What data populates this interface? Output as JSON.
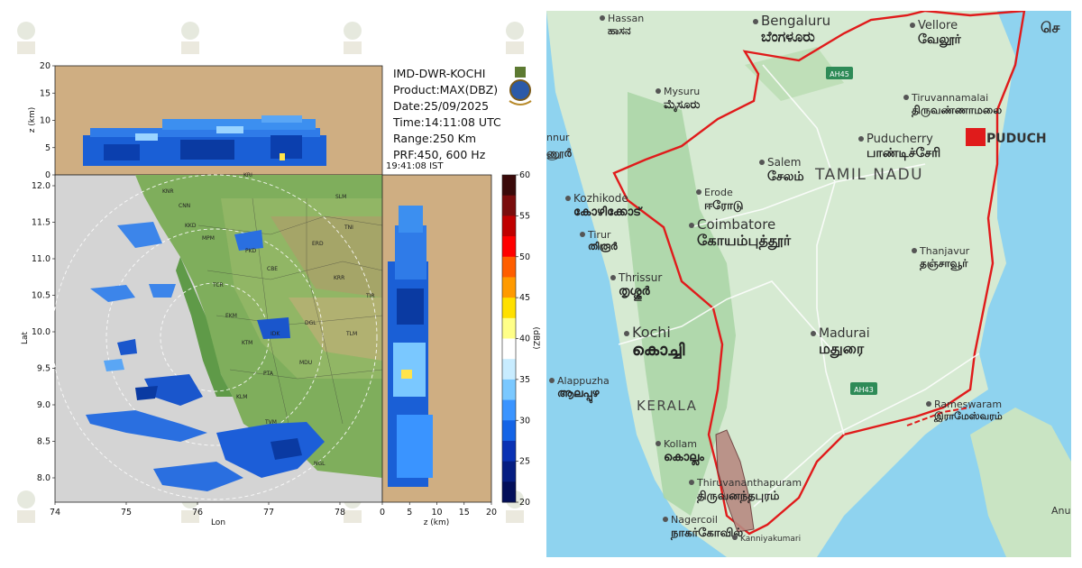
{
  "radar": {
    "station": "IMD-DWR-KOCHI",
    "product": "Product:MAX(DBZ)",
    "date": "Date:25/09/2025",
    "time_utc": "Time:14:11:08 UTC",
    "range": "Range:250 Km",
    "prf": "PRF:450, 600 Hz",
    "time_ist": "19:41:08  IST",
    "ylabel_top": "z (km)",
    "ylabel_main": "Lat",
    "xlabel_main": "Lon",
    "xlabel_side": "z (km)",
    "colorbar_label": "(dBZ)",
    "top_yticks": [
      "20",
      "15",
      "10",
      "5",
      "0"
    ],
    "main_yticks": [
      "12.0",
      "11.5",
      "11.0",
      "10.5",
      "10.0",
      "9.5",
      "9.0",
      "8.5",
      "8.0"
    ],
    "main_xticks": [
      "74",
      "75",
      "76",
      "77",
      "78"
    ],
    "side_xticks": [
      "0",
      "5",
      "10",
      "15",
      "20"
    ],
    "colorbar_ticks": [
      "60",
      "55",
      "50",
      "45",
      "40",
      "35",
      "30",
      "25",
      "20"
    ],
    "colorbar_colors": [
      "#3a0a0a",
      "#7a0d0d",
      "#c00000",
      "#ff0000",
      "#ff5e00",
      "#ff9a00",
      "#ffe000",
      "#ffff88",
      "#ffffff",
      "#c8ecff",
      "#7ac8ff",
      "#3a94ff",
      "#1464e6",
      "#0a32b4",
      "#061e82",
      "#030f5a"
    ],
    "city_codes": [
      "KNR",
      "CNN",
      "KKD",
      "MPM",
      "PKD",
      "TCR",
      "EKM",
      "KTM",
      "IDK",
      "PTA",
      "KLM",
      "TVM",
      "MDU",
      "DGL",
      "CBE",
      "ERD",
      "KRR",
      "TNI",
      "TLM",
      "NGL",
      "TIR",
      "SLM",
      "KRI"
    ],
    "colors": {
      "land": "#cfae82",
      "sea": "#d4d4d4",
      "plot_bg": "#e7c497"
    }
  },
  "map": {
    "state_label": "TAMIL NADU",
    "neighbor_label": "KERALA",
    "places": [
      {
        "en": "Hassan",
        "ta": "ಹಾಸನ"
      },
      {
        "en": "Bengaluru",
        "ta": "ಬೆಂಗಳೂರು"
      },
      {
        "en": "Vellore",
        "ta": "வேலூர்"
      },
      {
        "en": "Mysuru",
        "ta": "ಮೈಸೂರು"
      },
      {
        "en": "Tiruvannamalai",
        "ta": "திருவண்ணாமலை"
      },
      {
        "en": "Puducherry",
        "ta": "பாண்டிச்சேரி"
      },
      {
        "en": "Salem",
        "ta": "சேலம்"
      },
      {
        "en": "Kozhikode",
        "ta": "കോഴിക്കോട്"
      },
      {
        "en": "Erode",
        "ta": "ஈரோடு"
      },
      {
        "en": "Coimbatore",
        "ta": "கோயம்புத்தூர்"
      },
      {
        "en": "Tirur",
        "ta": "തിരൂർ"
      },
      {
        "en": "Thanjavur",
        "ta": "தஞ்சாவூர்"
      },
      {
        "en": "Thrissur",
        "ta": "തൃശ്ശൂർ"
      },
      {
        "en": "Kochi",
        "ta": "കൊച്ചി"
      },
      {
        "en": "Madurai",
        "ta": "மதுரை"
      },
      {
        "en": "Alappuzha",
        "ta": "ആലപ്പുഴ"
      },
      {
        "en": "Rameswaram",
        "ta": "இராமேஸ்வரம்"
      },
      {
        "en": "Kollam",
        "ta": "കൊല്ലം"
      },
      {
        "en": "Thiruvananthapuram",
        "ta": "திருவனந்தபுரம்"
      },
      {
        "en": "Nagercoil",
        "ta": "நாகர்கோவில்"
      },
      {
        "en": "Kanniyakumari",
        "ta": ""
      }
    ],
    "partial_labels": {
      "puduch": "PUDUCH",
      "chen": "செ",
      "nnur": "nnur",
      "ennur_ta": "ணூർ",
      "anu": "Anu"
    },
    "highways": [
      "AH45",
      "AH43"
    ],
    "colors": {
      "sea": "#8fd3ef",
      "land": "#d6ead2",
      "forest": "#a9d5a6",
      "border": "#e01b1b",
      "highlight": "#b88a82"
    }
  }
}
